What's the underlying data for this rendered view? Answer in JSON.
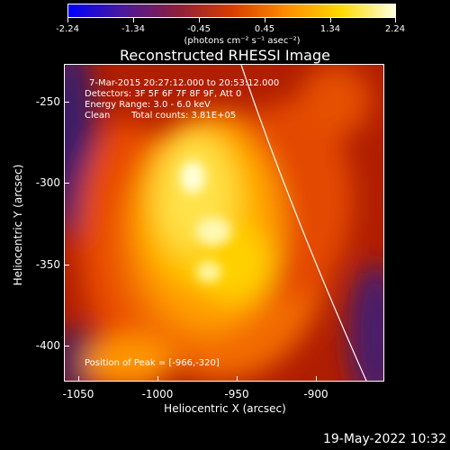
{
  "colorbar": {
    "ticks": [
      "-2.24",
      "-1.34",
      "-0.45",
      "0.45",
      "1.34",
      "2.24"
    ],
    "units": "(photons cm⁻² s⁻¹ asec⁻²)",
    "gradient": [
      "#0000ff",
      "#4a1a9a",
      "#8c1e3c",
      "#d63d00",
      "#ff8c00",
      "#ffd800",
      "#ffffe0"
    ]
  },
  "plot": {
    "title": "Reconstructed RHESSI Image",
    "time_range": "7-Mar-2015 20:27:12.000 to 20:53:12.000",
    "detectors": "Detectors: 3F 5F 6F 7F 8F 9F, Att 0",
    "energy_range": "Energy Range: 3.0 - 6.0 keV",
    "clean_label": "Clean",
    "total_counts": "Total counts: 3.81E+05",
    "peak_position": "Position of Peak = [-966,-320]",
    "x_axis_label": "Heliocentric X (arcsec)",
    "y_axis_label": "Heliocentric Y (arcsec)",
    "x_ticks": [
      "-1050",
      "-1000",
      "-950",
      "-900"
    ],
    "y_ticks": [
      "-250",
      "-300",
      "-350",
      "-400"
    ]
  },
  "timestamp": "19-May-2022 10:32"
}
